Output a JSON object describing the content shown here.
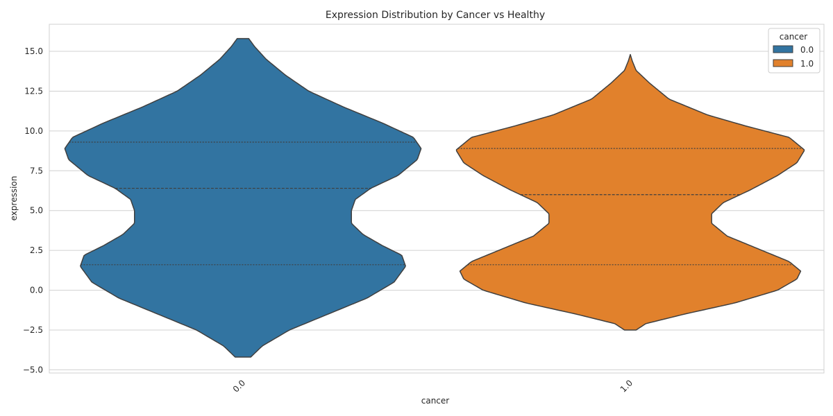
{
  "chart_data": {
    "type": "violin",
    "title": "Expression Distribution by Cancer vs Healthy",
    "xlabel": "cancer",
    "ylabel": "expression",
    "categories": [
      "0.0",
      "1.0"
    ],
    "ylim": [
      -5.2,
      16.7
    ],
    "yticks": [
      -5.0,
      -2.5,
      0.0,
      2.5,
      5.0,
      7.5,
      10.0,
      12.5,
      15.0
    ],
    "ytick_labels": [
      "−5.0",
      "−2.5",
      "0.0",
      "2.5",
      "5.0",
      "7.5",
      "10.0",
      "12.5",
      "15.0"
    ],
    "grid": true,
    "legend": {
      "title": "cancer",
      "placement": "top-right",
      "entries": [
        "0.0",
        "1.0"
      ]
    },
    "colors": {
      "0.0": "#3274a1",
      "1.0": "#e1812c",
      "outline": "#3f3f3f",
      "grid": "#d0d0d0"
    },
    "series": [
      {
        "name": "0.0",
        "category": "0.0",
        "min": -4.2,
        "max": 15.8,
        "quartiles": [
          1.6,
          6.4,
          9.3
        ],
        "quartile_half_widths": [
          0.42,
          0.33,
          0.46
        ],
        "density_profile": [
          [
            -4.2,
            0.02
          ],
          [
            -3.5,
            0.05
          ],
          [
            -2.5,
            0.12
          ],
          [
            -1.5,
            0.22
          ],
          [
            -0.5,
            0.32
          ],
          [
            0.5,
            0.39
          ],
          [
            1.5,
            0.42
          ],
          [
            2.2,
            0.41
          ],
          [
            2.8,
            0.36
          ],
          [
            3.5,
            0.31
          ],
          [
            4.2,
            0.28
          ],
          [
            5.0,
            0.28
          ],
          [
            5.7,
            0.29
          ],
          [
            6.4,
            0.33
          ],
          [
            7.2,
            0.4
          ],
          [
            8.2,
            0.45
          ],
          [
            8.9,
            0.46
          ],
          [
            9.6,
            0.44
          ],
          [
            10.5,
            0.36
          ],
          [
            11.5,
            0.26
          ],
          [
            12.5,
            0.17
          ],
          [
            13.5,
            0.11
          ],
          [
            14.5,
            0.06
          ],
          [
            15.3,
            0.03
          ],
          [
            15.8,
            0.015
          ]
        ]
      },
      {
        "name": "1.0",
        "category": "1.0",
        "min": -2.5,
        "max": 14.8,
        "quartiles": [
          1.6,
          6.0,
          8.9
        ],
        "quartile_half_widths": [
          0.42,
          0.18,
          0.45
        ],
        "density_profile": [
          [
            -2.5,
            0.015
          ],
          [
            -2.1,
            0.04
          ],
          [
            -1.5,
            0.14
          ],
          [
            -0.8,
            0.27
          ],
          [
            0.0,
            0.38
          ],
          [
            0.7,
            0.43
          ],
          [
            1.2,
            0.44
          ],
          [
            1.8,
            0.41
          ],
          [
            2.6,
            0.33
          ],
          [
            3.4,
            0.25
          ],
          [
            4.2,
            0.21
          ],
          [
            4.8,
            0.21
          ],
          [
            5.5,
            0.24
          ],
          [
            6.3,
            0.31
          ],
          [
            7.2,
            0.38
          ],
          [
            8.0,
            0.43
          ],
          [
            8.8,
            0.45
          ],
          [
            9.6,
            0.41
          ],
          [
            10.3,
            0.3
          ],
          [
            11.0,
            0.2
          ],
          [
            12.0,
            0.1
          ],
          [
            13.0,
            0.05
          ],
          [
            13.8,
            0.015
          ],
          [
            14.4,
            0.005
          ],
          [
            14.8,
            0.0
          ]
        ]
      }
    ]
  }
}
